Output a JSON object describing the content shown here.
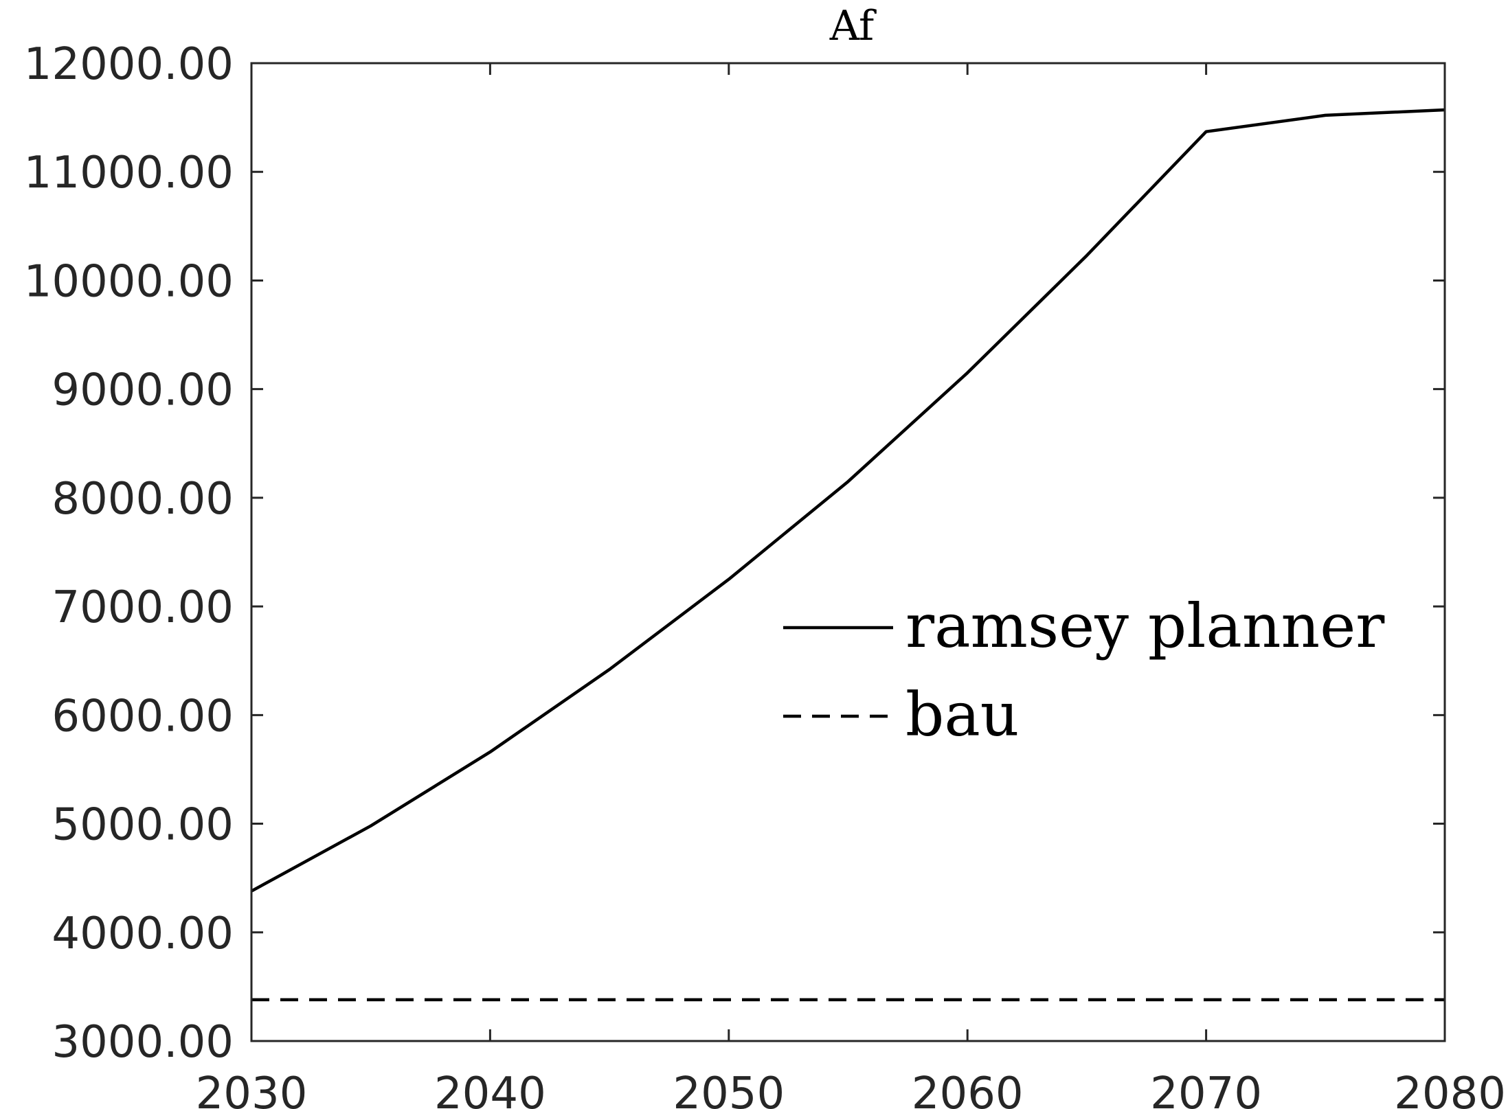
{
  "chart_data": {
    "type": "line",
    "title": "Af",
    "xlabel": "",
    "ylabel": "",
    "xlim": [
      2030,
      2080
    ],
    "ylim": [
      3000,
      12000
    ],
    "x_ticks": [
      2030,
      2040,
      2050,
      2060,
      2070,
      2080
    ],
    "x_tick_labels": [
      "2030",
      "2040",
      "2050",
      "2060",
      "2070",
      "2080"
    ],
    "y_ticks": [
      3000,
      4000,
      5000,
      6000,
      7000,
      8000,
      9000,
      10000,
      11000,
      12000
    ],
    "y_tick_labels": [
      "3000.00",
      "4000.00",
      "5000.00",
      "6000.00",
      "7000.00",
      "8000.00",
      "9000.00",
      "10000.00",
      "11000.00",
      "12000.00"
    ],
    "grid": false,
    "legend_position": "center-right",
    "x": [
      2030,
      2035,
      2040,
      2045,
      2050,
      2055,
      2060,
      2065,
      2070,
      2075,
      2080
    ],
    "series": [
      {
        "name": "ramsey planner",
        "style": "solid",
        "color": "#000000",
        "values": [
          4380,
          4980,
          5660,
          6420,
          7250,
          8150,
          9150,
          10230,
          11370,
          11520,
          11570
        ]
      },
      {
        "name": "bau",
        "style": "dashed",
        "color": "#000000",
        "values": [
          3380,
          3380,
          3380,
          3380,
          3380,
          3380,
          3380,
          3380,
          3380,
          3380,
          3380
        ]
      }
    ]
  }
}
